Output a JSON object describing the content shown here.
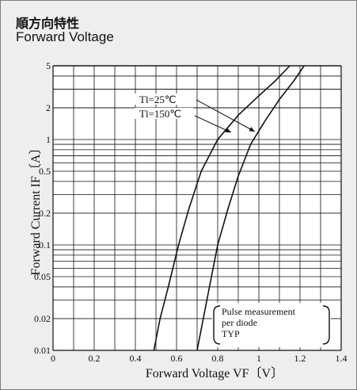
{
  "header": {
    "title_jp": "順方向特性",
    "title_en": "Forward Voltage"
  },
  "chart_data": {
    "type": "line",
    "title": "Forward Voltage",
    "xlabel": "Forward Voltage VF〔V〕",
    "ylabel": "Forward Current IF〔A〕",
    "xlim": [
      0,
      1.4
    ],
    "ylim": [
      0.01,
      5
    ],
    "yscale": "log",
    "grid": true,
    "x_ticks": [
      "0",
      "0.2",
      "0.4",
      "0.6",
      "0.8",
      "1",
      "1.2",
      "1.4"
    ],
    "y_ticks": [
      "0.01",
      "0.02",
      "0.05",
      "0.1",
      "0.2",
      "0.5",
      "1",
      "2",
      "5"
    ],
    "series": [
      {
        "name": "Tl=25℃",
        "x": [
          0.49,
          0.52,
          0.56,
          0.61,
          0.66,
          0.72,
          0.8,
          0.9,
          1.0,
          1.08,
          1.15
        ],
        "y": [
          0.01,
          0.02,
          0.04,
          0.1,
          0.22,
          0.5,
          1.0,
          1.7,
          2.6,
          3.6,
          5.0
        ]
      },
      {
        "name": "Tl=150℃",
        "x": [
          0.7,
          0.73,
          0.76,
          0.8,
          0.85,
          0.9,
          0.96,
          1.03,
          1.1,
          1.17,
          1.22
        ],
        "y": [
          0.01,
          0.02,
          0.04,
          0.1,
          0.22,
          0.45,
          0.9,
          1.5,
          2.4,
          3.6,
          5.0
        ]
      }
    ],
    "annotations": {
      "curve_25": "Tl=25℃",
      "curve_150": "Tl=150℃",
      "note_lines": [
        "Pulse measurement",
        "per diode",
        "TYP"
      ]
    }
  }
}
